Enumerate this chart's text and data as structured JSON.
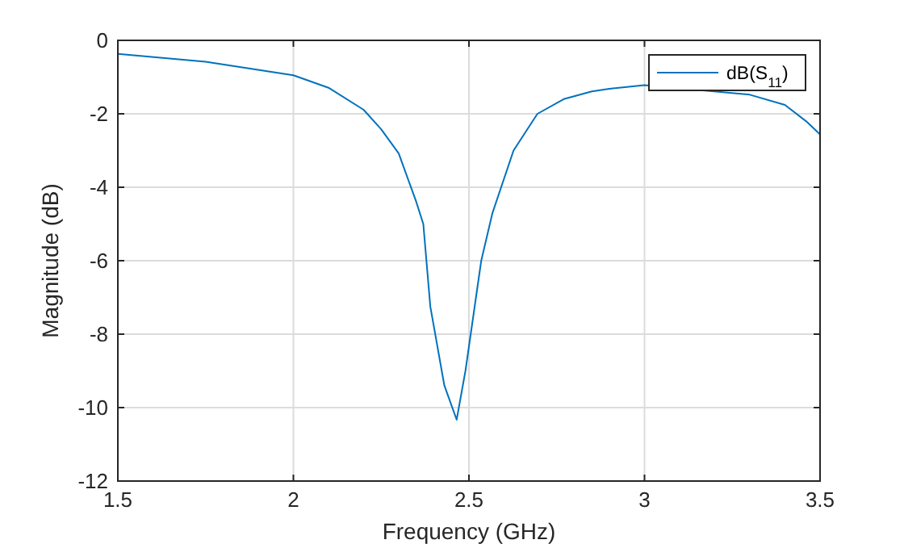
{
  "chart_data": {
    "type": "line",
    "xlabel": "Frequency (GHz)",
    "ylabel": "Magnitude (dB)",
    "xlim": [
      1.5,
      3.5
    ],
    "ylim": [
      -12,
      0
    ],
    "xticks": [
      1.5,
      2,
      2.5,
      3,
      3.5
    ],
    "yticks": [
      -12,
      -10,
      -8,
      -6,
      -4,
      -2,
      0
    ],
    "grid": true,
    "legend": "top right",
    "marker": "none",
    "line_style": "solid",
    "series": [
      {
        "name": "dB(S$_{11}$)",
        "color": "#0072bd",
        "x": [
          1.5,
          1.75,
          2.0,
          2.1,
          2.2,
          2.25,
          2.3,
          2.35,
          2.37,
          2.39,
          2.43,
          2.465,
          2.49,
          2.535,
          2.567,
          2.627,
          2.695,
          2.77,
          2.85,
          2.9,
          3.0,
          3.3,
          3.4,
          3.46,
          3.5
        ],
        "values": [
          -0.37,
          -0.58,
          -0.95,
          -1.29,
          -1.89,
          -2.42,
          -3.08,
          -4.4,
          -5,
          -7.25,
          -9.4,
          -10.33,
          -9,
          -6,
          -4.7,
          -3,
          -2,
          -1.6,
          -1.39,
          -1.32,
          -1.22,
          -1.48,
          -1.76,
          -2.2,
          -2.56
        ]
      }
    ]
  }
}
